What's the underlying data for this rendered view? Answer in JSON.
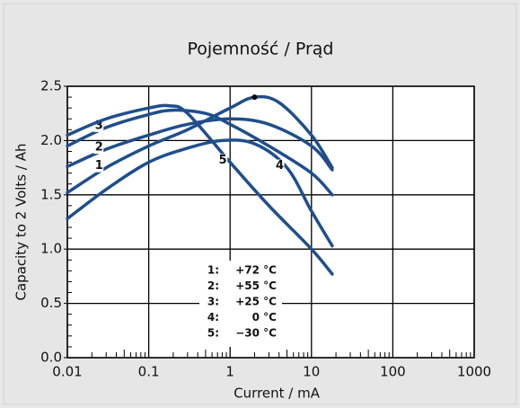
{
  "chart_data": {
    "type": "line",
    "title": "Pojemność / Prąd",
    "xlabel": "Current / mA",
    "ylabel": "Capacity to 2 Volts / Ah",
    "xscale": "log",
    "grid": true,
    "xlim": [
      0.01,
      1000
    ],
    "xticks": [
      0.01,
      0.1,
      1,
      10,
      100,
      1000
    ],
    "ylim": [
      0,
      2.5
    ],
    "yticks": [
      {
        "value": 0,
        "label": "0.0"
      },
      0.5,
      {
        "value": 1,
        "label": "1.0"
      },
      1.5,
      {
        "value": 2,
        "label": "2.0"
      },
      2.5
    ],
    "series": [
      {
        "label": "1",
        "key": "1:",
        "name": "+72 °C",
        "color": "#1f4e8c",
        "x": [
          0.01,
          0.03,
          0.1,
          0.3,
          1,
          2,
          4,
          10,
          18
        ],
        "values": [
          1.52,
          1.75,
          1.95,
          2.1,
          2.3,
          2.4,
          2.35,
          2.05,
          1.75
        ]
      },
      {
        "label": "2",
        "key": "2:",
        "name": "+55 °C",
        "color": "#1f4e8c",
        "x": [
          0.01,
          0.03,
          0.1,
          0.3,
          1,
          3,
          10,
          18
        ],
        "values": [
          1.76,
          1.92,
          2.05,
          2.15,
          2.2,
          2.15,
          1.95,
          1.73
        ]
      },
      {
        "label": "3",
        "key": "3:",
        "name": "+25 °C",
        "color": "#1f4e8c",
        "x": [
          0.01,
          0.03,
          0.1,
          0.2,
          0.5,
          1,
          3,
          10,
          18
        ],
        "values": [
          1.95,
          2.12,
          2.24,
          2.28,
          2.25,
          2.15,
          1.95,
          1.7,
          1.5
        ]
      },
      {
        "label": "4",
        "key": "4:",
        "name": "0 °C",
        "color": "#1f4e8c",
        "x": [
          0.01,
          0.03,
          0.1,
          0.3,
          0.8,
          2,
          5,
          10,
          18
        ],
        "values": [
          1.28,
          1.55,
          1.8,
          1.93,
          2.0,
          1.97,
          1.75,
          1.35,
          1.03
        ]
      },
      {
        "label": "5",
        "key": "5:",
        "name": "−30 °C",
        "color": "#1f4e8c",
        "x": [
          0.01,
          0.03,
          0.1,
          0.18,
          0.3,
          1,
          3,
          10,
          18
        ],
        "values": [
          2.05,
          2.2,
          2.3,
          2.32,
          2.25,
          1.8,
          1.4,
          1.0,
          0.77
        ]
      }
    ],
    "marker": {
      "x": 2,
      "y": 2.4
    }
  }
}
